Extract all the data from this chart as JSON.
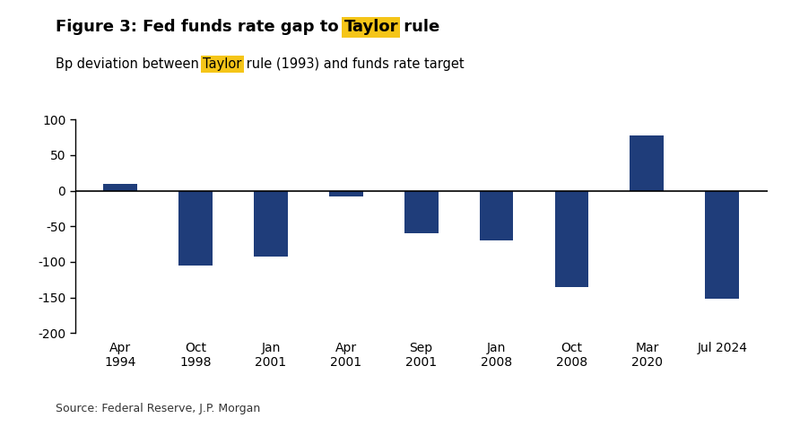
{
  "categories": [
    "Apr\n1994",
    "Oct\n1998",
    "Jan\n2001",
    "Apr\n2001",
    "Sep\n2001",
    "Jan\n2008",
    "Oct\n2008",
    "Mar\n2020",
    "Jul 2024"
  ],
  "values": [
    10,
    -105,
    -92,
    -8,
    -60,
    -70,
    -135,
    78,
    -152
  ],
  "bar_color": "#1F3D7A",
  "title_prefix": "Figure 3: Fed funds rate gap to ",
  "title_highlight": "Taylor",
  "title_suffix": " rule",
  "subtitle_prefix": "Bp deviation between ",
  "subtitle_highlight": "Taylor",
  "subtitle_suffix": " rule (1993) and funds rate target",
  "highlight_color": "#F5C518",
  "ylim": [
    -200,
    100
  ],
  "yticks": [
    -200,
    -150,
    -100,
    -50,
    0,
    50,
    100
  ],
  "source_text": "Source: Federal Reserve, J.P. Morgan",
  "background_color": "#FFFFFF",
  "title_fontsize": 13,
  "subtitle_fontsize": 10.5,
  "source_fontsize": 9,
  "tick_fontsize": 10,
  "bar_width": 0.45
}
